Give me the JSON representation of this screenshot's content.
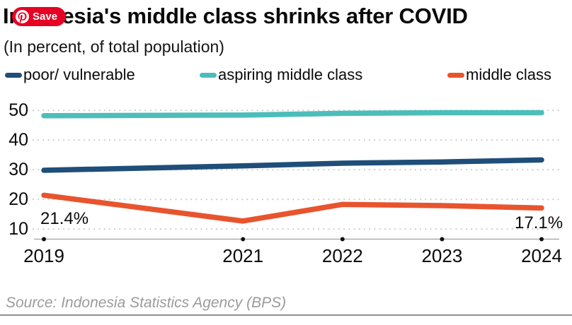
{
  "save_button": {
    "label": "Save",
    "background_color": "#E60023"
  },
  "header": {
    "title": "Indonesia's middle class shrinks after COVID",
    "subtitle": "(In percent, of total population)"
  },
  "source": "Source: Indonesia Statistics Agency (BPS)",
  "chart_data": {
    "type": "line",
    "title": "Indonesia's middle class shrinks after COVID",
    "subtitle": "(In percent, of total population)",
    "x": [
      2019,
      2021,
      2022,
      2023,
      2024
    ],
    "x_note": "linear year scale, 2020 has no tick or label",
    "y_ticks": [
      10,
      20,
      30,
      40,
      50
    ],
    "ylim": [
      5,
      53
    ],
    "grid": "dotted horizontal gridlines",
    "legend_position": "top",
    "axis_color": "#ababab",
    "gridline_color": "#c9c9c9",
    "tick_dot_color": "#111111",
    "series": [
      {
        "name": "poor/ vulnerable",
        "color": "#1F4E79",
        "values": [
          29.8,
          31.3,
          32.2,
          32.6,
          33.3
        ]
      },
      {
        "name": "aspiring middle class",
        "color": "#4DBDBA",
        "values": [
          48.2,
          48.4,
          49.0,
          49.2,
          49.2
        ]
      },
      {
        "name": "middle class",
        "color": "#E8542D",
        "values": [
          21.4,
          12.7,
          18.3,
          17.9,
          17.1
        ]
      }
    ],
    "annotations": [
      {
        "series": "middle class",
        "x": 2019,
        "text": "21.4%"
      },
      {
        "series": "middle class",
        "x": 2024,
        "text": "17.1%"
      }
    ]
  }
}
